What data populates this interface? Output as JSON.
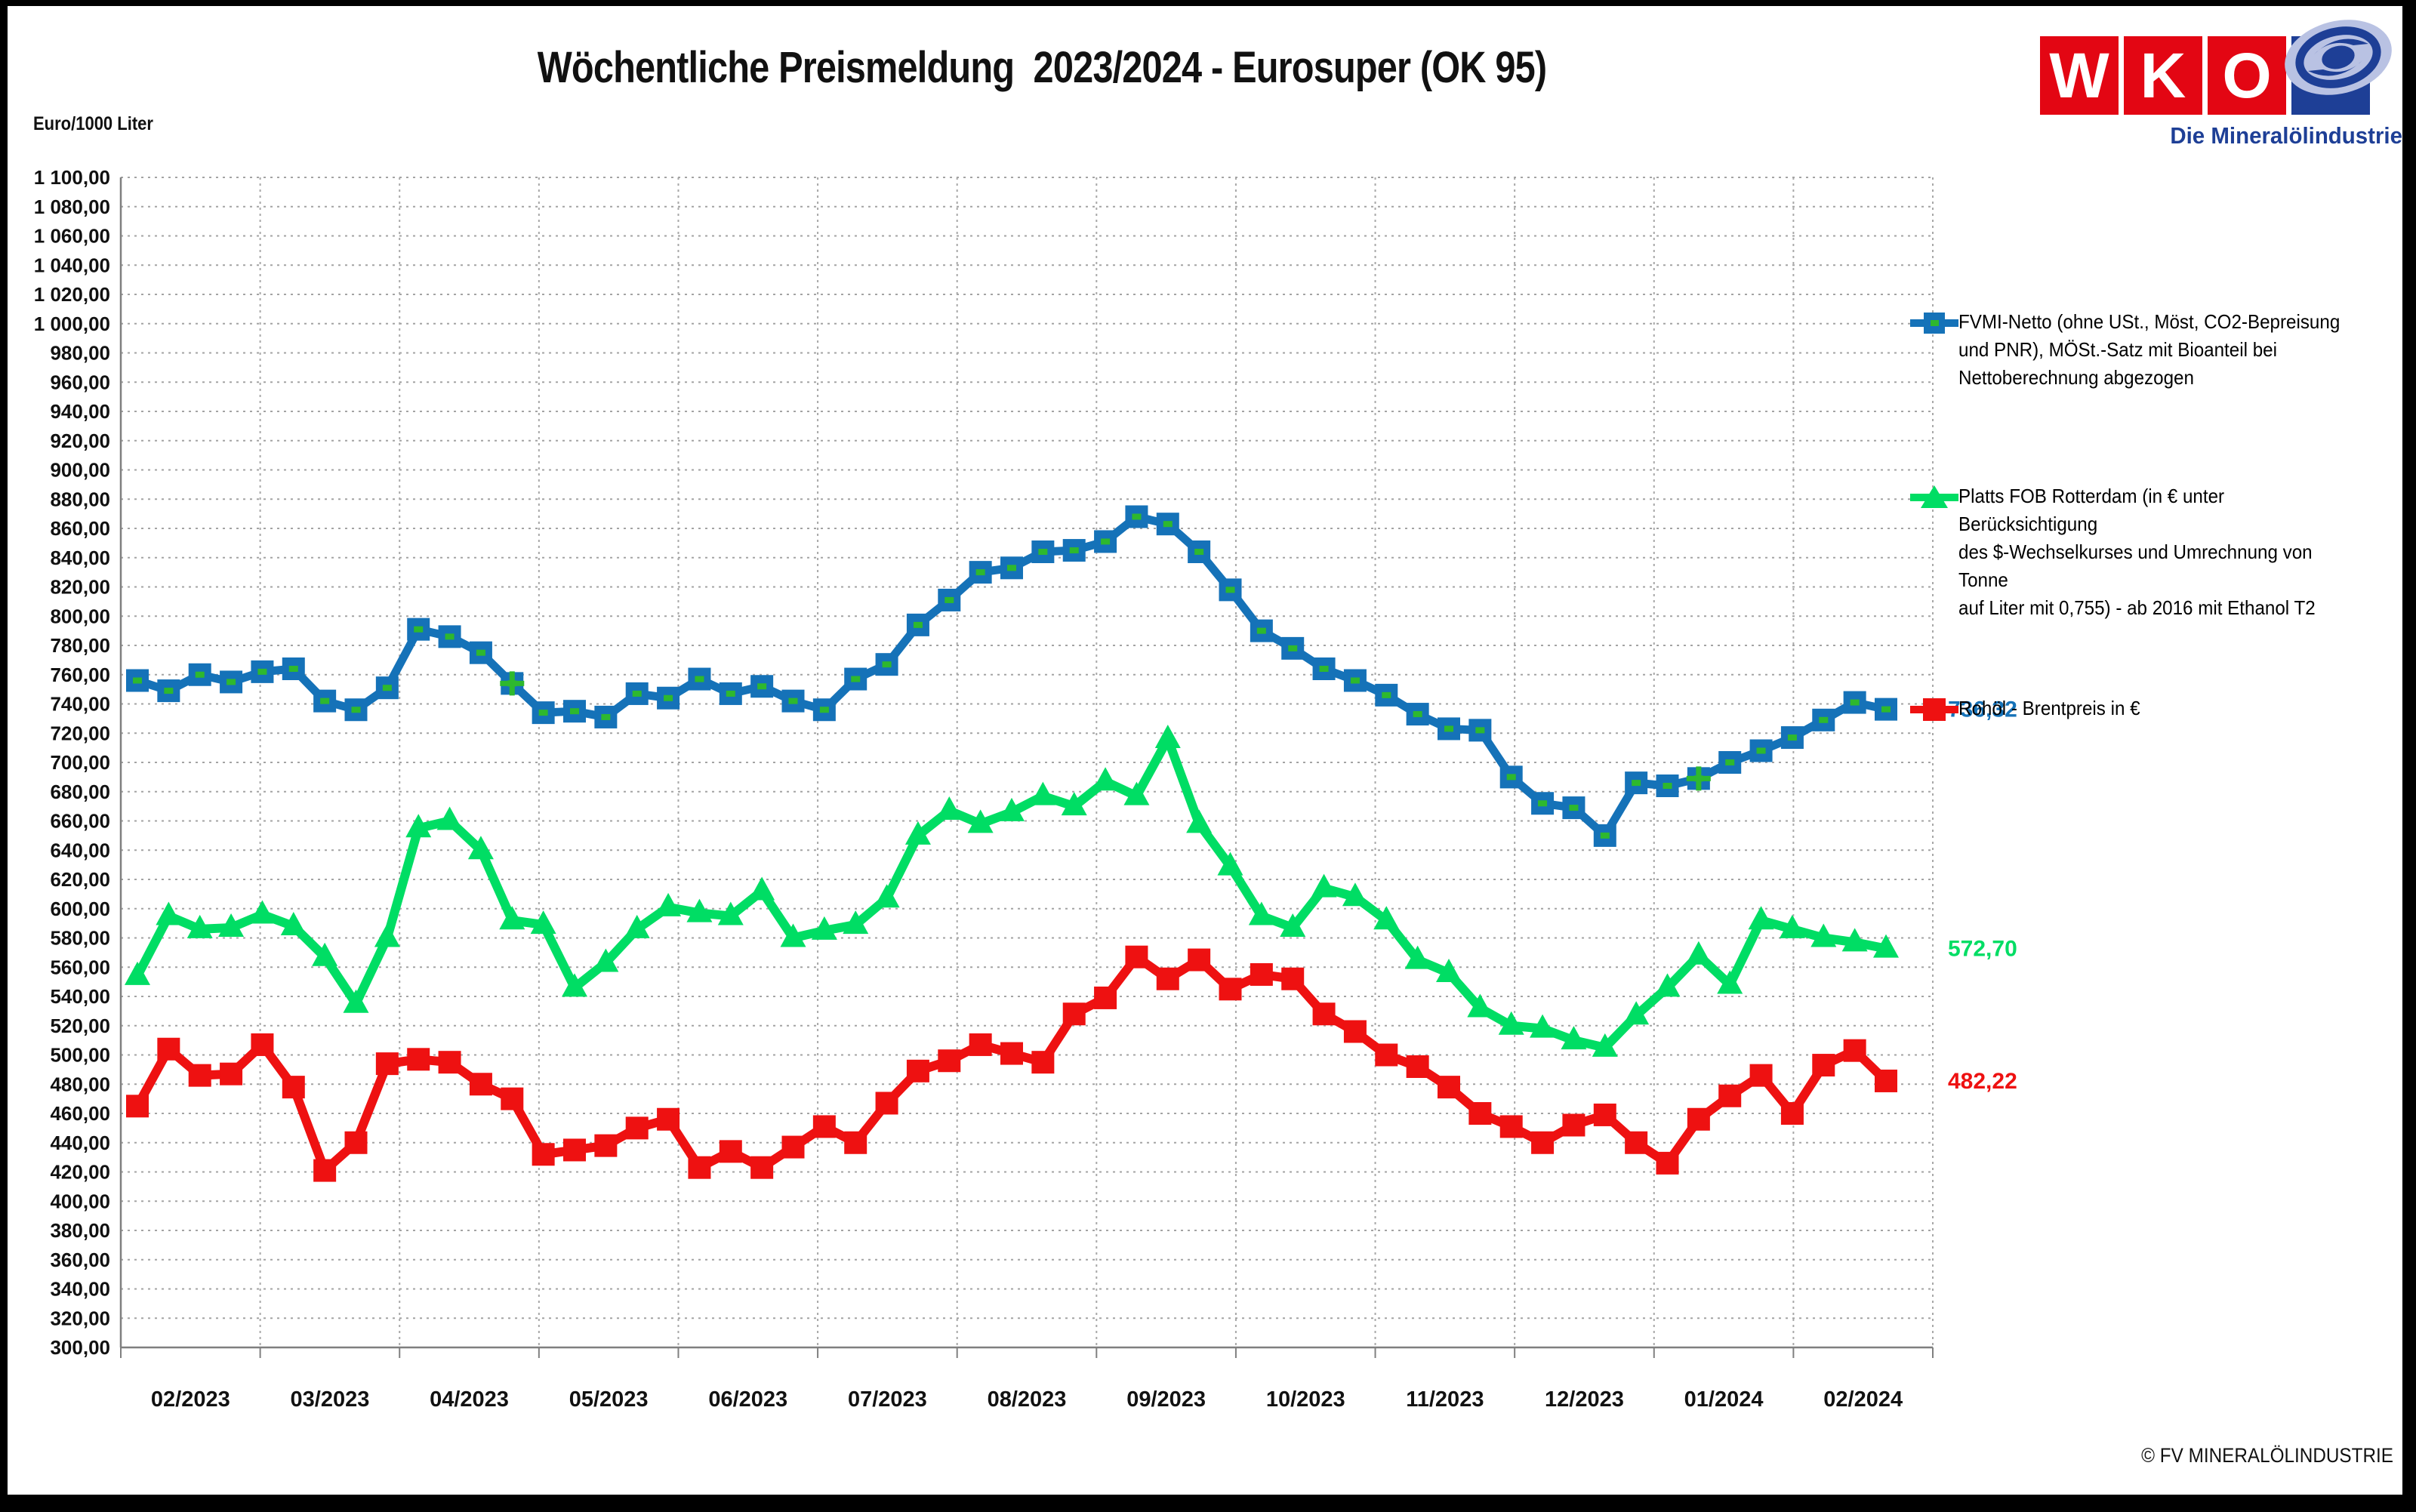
{
  "title": "Wöchentliche Preismeldung  2023/2024 - Eurosuper (OK 95)",
  "unit_label": "Euro/1000 Liter",
  "copyright": "© FV MINERALÖLINDUSTRIE",
  "logo": {
    "letters": [
      "W",
      "K",
      "O"
    ],
    "subtitle": "Die Mineralölindustrie",
    "red": "#e30613",
    "blue": "#1e3f96"
  },
  "legend": {
    "fvmi": [
      "FVMI-Netto (ohne USt., Möst, CO2-Bepreisung",
      "und PNR), MÖSt.-Satz mit Bioanteil bei",
      "Nettoberechnung abgezogen"
    ],
    "platts": [
      "Platts FOB Rotterdam (in € unter Berücksichtigung",
      "des $-Wechselkurses und Umrechnung von Tonne",
      "auf Liter mit 0,755) - ab 2016 mit Ethanol T2"
    ],
    "brent": [
      "Rohöl - Brentpreis in €"
    ]
  },
  "chart_data": {
    "type": "line",
    "title": "Wöchentliche Preismeldung 2023/2024 - Eurosuper (OK 95)",
    "ylabel": "Euro/1000 Liter",
    "ylim": [
      300,
      1100
    ],
    "ytick_step": 20,
    "grid": true,
    "legend_position": "right",
    "categories": [
      "02/2023",
      "03/2023",
      "04/2023",
      "05/2023",
      "06/2023",
      "07/2023",
      "08/2023",
      "09/2023",
      "10/2023",
      "11/2023",
      "12/2023",
      "01/2024",
      "02/2024"
    ],
    "x_is_weekly": true,
    "weeks": 57,
    "end_labels": [
      "736,32",
      "572,70",
      "482,22"
    ],
    "cross_marker_weeks": [
      13,
      51
    ],
    "series": [
      {
        "name": "FVMI-Netto (ohne USt., Möst, CO2-Bepreisung und PNR), MÖSt.-Satz mit Bioanteil bei Nettoberechnung abgezogen",
        "color": "#1572b8",
        "marker": "square",
        "marker_center": "#2eb82e",
        "end_label": "736,32",
        "values": [
          756,
          749,
          760,
          755,
          762,
          764,
          742,
          736,
          751,
          791,
          786,
          775,
          754,
          734,
          735,
          731,
          747,
          744,
          757,
          747,
          752,
          742,
          736,
          757,
          767,
          794,
          811,
          830,
          833,
          844,
          845,
          851,
          868,
          863,
          844,
          818,
          790,
          778,
          764,
          756,
          746,
          733,
          723,
          722,
          690,
          672,
          669,
          650,
          686,
          684,
          689,
          700,
          708,
          717,
          729,
          741,
          736.32
        ]
      },
      {
        "name": "Platts FOB Rotterdam (in € unter Berücksichtigung des $-Wechselkurses und Umrechnung von Tonne auf Liter mit 0,755) - ab 2016 mit Ethanol T2",
        "color": "#00dd64",
        "marker": "triangle",
        "end_label": "572,70",
        "values": [
          554,
          595,
          586,
          587,
          596,
          588,
          567,
          535,
          580,
          655,
          660,
          640,
          592,
          589,
          546,
          563,
          586,
          601,
          597,
          595,
          612,
          580,
          585,
          589,
          607,
          650,
          667,
          658,
          666,
          677,
          670,
          687,
          677,
          716,
          658,
          629,
          595,
          587,
          614,
          608,
          592,
          565,
          556,
          532,
          520,
          518,
          510,
          505,
          527,
          546,
          568,
          548,
          592,
          586,
          580,
          577,
          572.7
        ]
      },
      {
        "name": "Rohöl - Brentpreis in €",
        "color": "#ee1111",
        "marker": "square",
        "end_label": "482,22",
        "values": [
          465,
          504,
          486,
          487,
          507,
          478,
          421,
          440,
          494,
          497,
          495,
          480,
          470,
          432,
          435,
          438,
          450,
          456,
          423,
          434,
          423,
          437,
          451,
          440,
          467,
          489,
          496,
          507,
          501,
          495,
          528,
          539,
          567,
          552,
          565,
          545,
          555,
          552,
          528,
          516,
          500,
          492,
          478,
          460,
          451,
          440,
          452,
          459,
          440,
          426,
          456,
          472,
          486,
          460,
          493,
          503,
          482.22
        ]
      }
    ]
  }
}
